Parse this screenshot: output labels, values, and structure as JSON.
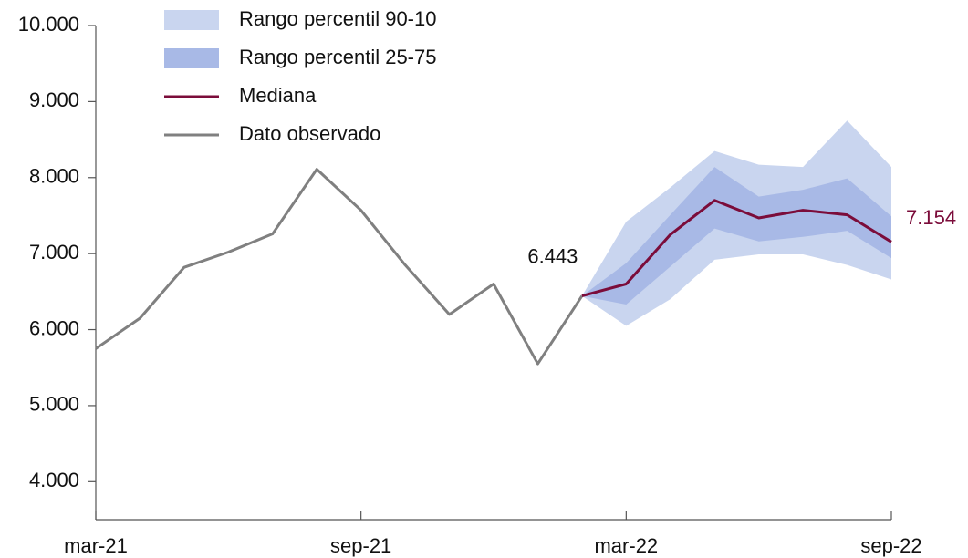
{
  "chart_data": {
    "type": "line",
    "categories": [
      "mar-21",
      null,
      null,
      null,
      null,
      null,
      "sep-21",
      null,
      null,
      null,
      null,
      null,
      "mar-22",
      null,
      null,
      null,
      null,
      null,
      "sep-22"
    ],
    "ylim": [
      3500,
      10000
    ],
    "yticks": [
      {
        "value": 4000,
        "label": "4.000"
      },
      {
        "value": 5000,
        "label": "5.000"
      },
      {
        "value": 6000,
        "label": "6.000"
      },
      {
        "value": 7000,
        "label": "7.000"
      },
      {
        "value": 8000,
        "label": "8.000"
      },
      {
        "value": 9000,
        "label": "9.000"
      },
      {
        "value": 10000,
        "label": "10.000"
      }
    ],
    "series": [
      {
        "name": "Rango percentil 90-10",
        "kind": "band",
        "color": "#c9d5ef",
        "upper": [
          null,
          null,
          null,
          null,
          null,
          null,
          null,
          null,
          null,
          null,
          null,
          6443,
          7420,
          7870,
          8350,
          8170,
          8140,
          8750,
          8140
        ],
        "lower": [
          null,
          null,
          null,
          null,
          null,
          null,
          null,
          null,
          null,
          null,
          null,
          6443,
          6050,
          6400,
          6920,
          6990,
          6990,
          6850,
          6660
        ]
      },
      {
        "name": "Rango percentil 25-75",
        "kind": "band",
        "color": "#a8b9e6",
        "upper": [
          null,
          null,
          null,
          null,
          null,
          null,
          null,
          null,
          null,
          null,
          null,
          6443,
          6875,
          7510,
          8140,
          7750,
          7840,
          7990,
          7490
        ],
        "lower": [
          null,
          null,
          null,
          null,
          null,
          null,
          null,
          null,
          null,
          null,
          null,
          6443,
          6330,
          6830,
          7330,
          7160,
          7220,
          7300,
          6940
        ]
      },
      {
        "name": "Mediana",
        "kind": "line",
        "color": "#7b0c3a",
        "values": [
          null,
          null,
          null,
          null,
          null,
          null,
          null,
          null,
          null,
          null,
          null,
          6443,
          6600,
          7250,
          7700,
          7470,
          7570,
          7510,
          7154
        ],
        "value_labels": [
          null,
          null,
          null,
          null,
          null,
          null,
          null,
          null,
          null,
          null,
          null,
          null,
          null,
          null,
          null,
          null,
          null,
          null,
          "7.154"
        ],
        "value_label_color": "#7b0c3a"
      },
      {
        "name": "Dato observado",
        "kind": "line",
        "color": "#808080",
        "values": [
          5750,
          6150,
          6820,
          7020,
          7260,
          8110,
          7570,
          6850,
          6200,
          6600,
          5550,
          6443,
          null,
          null,
          null,
          null,
          null,
          null,
          null
        ],
        "value_labels": [
          null,
          null,
          null,
          null,
          null,
          null,
          null,
          null,
          null,
          null,
          null,
          "6.443",
          null,
          null,
          null,
          null,
          null,
          null,
          null
        ],
        "value_label_color": "#111111"
      }
    ]
  }
}
